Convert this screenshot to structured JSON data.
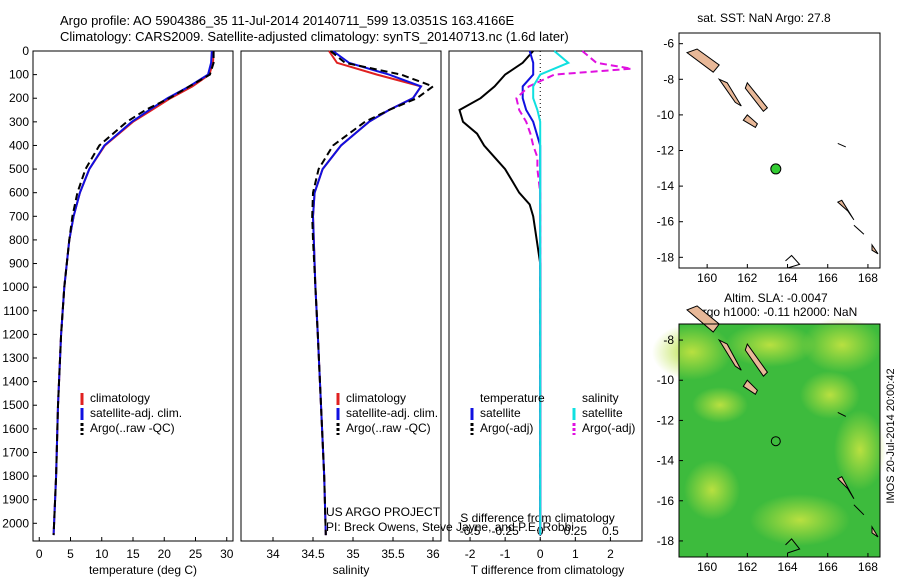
{
  "header": {
    "line1": "Argo profile: AO 5904386_35 11-Jul-2014 20140711_599 13.0351S 163.4166E",
    "line2": "Climatology: CARS2009. Satellite-adjusted climatology: synTS_20140713.nc (1.6d later)"
  },
  "side_label": "IMOS 20-Jul-2014 20:00:42",
  "colors": {
    "climatology": "#e02020",
    "satellite": "#1010e0",
    "argo": "#000000",
    "sat_cyan": "#10e0e0",
    "argo_magenta": "#e010e0",
    "land": "#e8b898",
    "ocean_green": "#3dbb3d"
  },
  "chart_data": [
    {
      "type": "line",
      "id": "temperature",
      "xlabel": "temperature (deg C)",
      "xlim": [
        -1,
        31
      ],
      "xticks": [
        0,
        5,
        10,
        15,
        20,
        25,
        30
      ],
      "ylim": [
        0,
        2075
      ],
      "yticks": [
        0,
        100,
        200,
        300,
        400,
        500,
        600,
        700,
        800,
        900,
        1000,
        1100,
        1200,
        1300,
        1400,
        1500,
        1600,
        1700,
        1800,
        1900,
        2000
      ],
      "legend": [
        "climatology",
        "satellite-adj. clim.",
        "Argo(..raw -QC)"
      ],
      "series": [
        {
          "name": "climatology",
          "depth": [
            0,
            50,
            100,
            150,
            200,
            250,
            300,
            400,
            500,
            600,
            700,
            800,
            1000,
            1200,
            1500,
            1800,
            2050
          ],
          "values": [
            27.9,
            27.8,
            27.2,
            24.5,
            21.0,
            18.0,
            15.0,
            10.5,
            8.0,
            6.5,
            5.5,
            4.8,
            4.0,
            3.5,
            3.0,
            2.7,
            2.3
          ]
        },
        {
          "name": "satellite-adj. clim.",
          "depth": [
            0,
            50,
            100,
            150,
            200,
            250,
            300,
            400,
            500,
            600,
            700,
            800,
            1000,
            1200,
            1500,
            1800,
            2050
          ],
          "values": [
            27.6,
            27.5,
            27.0,
            24.0,
            20.5,
            17.6,
            14.8,
            10.4,
            8.0,
            6.5,
            5.5,
            4.8,
            4.0,
            3.5,
            3.0,
            2.7,
            2.3
          ]
        },
        {
          "name": "Argo(..raw -QC)",
          "depth": [
            0,
            50,
            100,
            150,
            200,
            250,
            300,
            400,
            500,
            600,
            700,
            800,
            1000,
            1200,
            1500,
            1800,
            2050
          ],
          "values": [
            27.9,
            27.9,
            27.3,
            24.0,
            20.8,
            17.0,
            14.0,
            9.6,
            7.4,
            6.1,
            5.3,
            4.8,
            4.0,
            3.5,
            3.0,
            2.7,
            2.3
          ]
        }
      ]
    },
    {
      "type": "line",
      "id": "salinity",
      "xlabel": "salinity",
      "xlim": [
        33.6,
        36.1
      ],
      "xticks": [
        34,
        34.5,
        35,
        35.5,
        36
      ],
      "ylim": [
        0,
        2075
      ],
      "legend": [
        "climatology",
        "satellite-adj. clim.",
        "Argo(..raw -QC)"
      ],
      "series": [
        {
          "name": "climatology",
          "depth": [
            0,
            50,
            100,
            150,
            200,
            250,
            300,
            400,
            500,
            600,
            700,
            800,
            1000,
            1200,
            1500,
            1800,
            2050
          ],
          "values": [
            34.7,
            34.8,
            35.3,
            35.85,
            35.75,
            35.45,
            35.2,
            34.85,
            34.62,
            34.52,
            34.5,
            34.51,
            34.53,
            34.56,
            34.6,
            34.64,
            34.66
          ]
        },
        {
          "name": "satellite-adj. clim.",
          "depth": [
            0,
            50,
            100,
            150,
            200,
            250,
            300,
            400,
            500,
            600,
            700,
            800,
            1000,
            1200,
            1500,
            1800,
            2050
          ],
          "values": [
            34.75,
            34.95,
            35.45,
            35.85,
            35.75,
            35.45,
            35.2,
            34.85,
            34.62,
            34.52,
            34.5,
            34.51,
            34.53,
            34.56,
            34.6,
            34.64,
            34.66
          ]
        },
        {
          "name": "Argo(..raw -QC)",
          "depth": [
            0,
            50,
            100,
            150,
            200,
            250,
            300,
            400,
            500,
            600,
            700,
            800,
            1000,
            1200,
            1500,
            1800,
            2050
          ],
          "values": [
            34.72,
            34.9,
            35.6,
            36.0,
            35.8,
            35.45,
            35.15,
            34.75,
            34.57,
            34.5,
            34.49,
            34.5,
            34.53,
            34.56,
            34.6,
            34.64,
            34.66
          ]
        }
      ]
    },
    {
      "type": "line",
      "id": "difference",
      "xlabel": "T difference from climatology",
      "title_inner": "S difference from climatology",
      "xlim": [
        -2.6,
        2.9
      ],
      "xticks": [
        -2,
        -1,
        0,
        1,
        2
      ],
      "top_xlim": [
        -0.65,
        0.725
      ],
      "top_xticks": [
        -0.5,
        -0.25,
        0,
        0.25,
        0.5
      ],
      "ylim": [
        0,
        2075
      ],
      "legend_heading_left": "temperature",
      "legend_heading_right": "salinity",
      "legend": [
        "satellite",
        "Argo(-adj)",
        "satellite",
        "Argo(-adj)"
      ],
      "series": [
        {
          "name": "T satellite",
          "depth": [
            0,
            50,
            100,
            150,
            200,
            250,
            300,
            400,
            500,
            600,
            700,
            800,
            1000,
            2050
          ],
          "values": [
            -0.3,
            -0.2,
            -0.2,
            -0.5,
            -0.5,
            -0.4,
            -0.2,
            0.0,
            0.0,
            0.0,
            0.0,
            0.0,
            0.0,
            0.0
          ]
        },
        {
          "name": "T Argo(-adj)",
          "depth": [
            0,
            50,
            100,
            150,
            200,
            250,
            300,
            350,
            400,
            450,
            500,
            550,
            600,
            650,
            700,
            800,
            900,
            1000,
            1200,
            1500,
            2050
          ],
          "values": [
            -0.2,
            -0.5,
            -1.0,
            -1.3,
            -1.7,
            -2.3,
            -2.2,
            -1.8,
            -1.6,
            -1.3,
            -1.0,
            -0.8,
            -0.6,
            -0.3,
            -0.2,
            -0.1,
            0.0,
            0.0,
            0.0,
            0.0,
            0.0
          ]
        },
        {
          "name": "S satellite",
          "depth": [
            0,
            50,
            100,
            150,
            200,
            250,
            300,
            400,
            500,
            600,
            800,
            1000,
            2050
          ],
          "values": [
            0.1,
            0.2,
            0.0,
            -0.05,
            -0.05,
            -0.02,
            0.0,
            0.0,
            0.0,
            0.0,
            0.0,
            0.0,
            0.0
          ]
        },
        {
          "name": "S Argo(-adj)",
          "depth": [
            0,
            50,
            75,
            100,
            150,
            200,
            250,
            300,
            350,
            400,
            450,
            500,
            600,
            700,
            800,
            1000,
            1200,
            1500,
            2050
          ],
          "values": [
            0.3,
            0.4,
            0.65,
            0.1,
            -0.08,
            -0.17,
            -0.15,
            -0.1,
            -0.07,
            -0.05,
            -0.02,
            -0.02,
            0.0,
            0.0,
            0.0,
            0.0,
            0.0,
            0.0,
            0.0
          ]
        }
      ]
    },
    {
      "type": "map",
      "id": "sst_map",
      "title": "sat. SST: NaN Argo: 27.8",
      "xlim": [
        158.6,
        168.6
      ],
      "ylim": [
        -18.6,
        -5.4
      ],
      "xticks": [
        160,
        162,
        164,
        166,
        168
      ],
      "yticks": [
        -6,
        -8,
        -10,
        -12,
        -14,
        -16,
        -18
      ],
      "marker": {
        "lon": 163.4166,
        "lat": -13.0351
      }
    },
    {
      "type": "map",
      "id": "sla_map",
      "title1": "Altim. SLA: -0.0047",
      "title2": "Argo h1000: -0.11 h2000: NaN",
      "xlim": [
        158.6,
        168.6
      ],
      "ylim": [
        -18.8,
        -7.2
      ],
      "xticks": [
        160,
        162,
        164,
        166,
        168
      ],
      "yticks": [
        -8,
        -10,
        -12,
        -14,
        -16,
        -18
      ],
      "marker": {
        "lon": 163.4166,
        "lat": -13.0351
      }
    }
  ],
  "legend_labels": {
    "clim": "climatology",
    "sat": "satellite-adj. clim.",
    "argo": "Argo(..raw -QC)",
    "diff_temp": "temperature",
    "diff_sal": "salinity",
    "diff_sat": "satellite",
    "diff_argo": "Argo(-adj)"
  },
  "credit": {
    "line1": "US ARGO PROJECT",
    "line2": "PI: Breck Owens, Steve Jayne, and P.E. Robbi"
  }
}
